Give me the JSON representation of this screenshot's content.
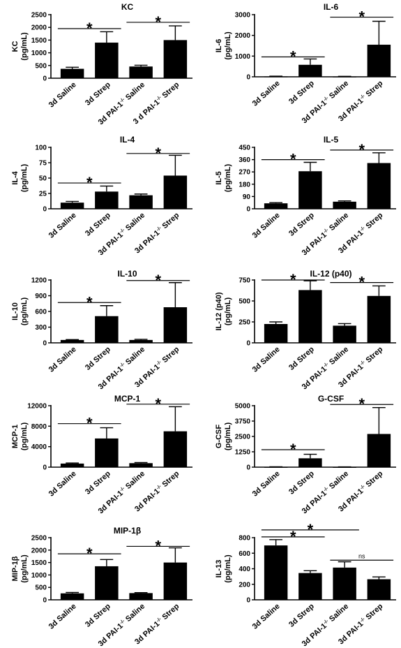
{
  "chart_data": [
    {
      "id": "kc",
      "type": "bar",
      "title": "KC",
      "ylabel_top": "KC",
      "ylabel_bottom": "(pg/mL)",
      "yticks": [
        "0",
        "500",
        "1000",
        "1500",
        "2000",
        "2500"
      ],
      "ylim": [
        0,
        2500
      ],
      "categories": [
        {
          "prefix": "3d Saline"
        },
        {
          "prefix": "3d Strep"
        },
        {
          "prefix": "3d PAI-1",
          "sup": "-/-",
          "suffix": " Saline"
        },
        {
          "prefix": "3 d PAI-1",
          "sup": "-/-",
          "suffix": " Strep"
        }
      ],
      "values": [
        370,
        1400,
        460,
        1500
      ],
      "errors": [
        60,
        430,
        50,
        560
      ],
      "sig": [
        {
          "from": 0,
          "to": 1,
          "label": "*",
          "y": 1950
        },
        {
          "from": 2,
          "to": 3,
          "label": "*",
          "y": 2200
        }
      ]
    },
    {
      "id": "il6",
      "type": "bar",
      "title": "IL-6",
      "ylabel_top": "IL-6",
      "ylabel_bottom": "(pg/mL)",
      "yticks": [
        "0",
        "1000",
        "2000",
        "3000"
      ],
      "ylim": [
        0,
        3000
      ],
      "categories": [
        {
          "prefix": "3d Saline"
        },
        {
          "prefix": "3d Strep"
        },
        {
          "prefix": "3d PAI-1",
          "sup": "-/-",
          "suffix": " Saline"
        },
        {
          "prefix": "3d PAI-1",
          "sup": "-/-",
          "suffix": " Strep"
        }
      ],
      "values": [
        20,
        580,
        15,
        1550
      ],
      "errors": [
        10,
        280,
        8,
        1130
      ],
      "sig": [
        {
          "from": 0,
          "to": 1,
          "label": "*",
          "y": 960
        },
        {
          "from": 2,
          "to": 3,
          "label": "*",
          "y": 2880
        }
      ]
    },
    {
      "id": "il4",
      "type": "bar",
      "title": "IL-4",
      "ylabel_top": "IL-4",
      "ylabel_bottom": "(pg/mL)",
      "yticks": [
        "0",
        "25",
        "50",
        "75",
        "100"
      ],
      "ylim": [
        0,
        100
      ],
      "categories": [
        {
          "prefix": "3d Saline"
        },
        {
          "prefix": "3d Strep"
        },
        {
          "prefix": "3d PAI-1",
          "sup": "-/-",
          "suffix": " Saline"
        },
        {
          "prefix": "3d PAI-1",
          "sup": "-/-",
          "suffix": " Strep"
        }
      ],
      "values": [
        10,
        28,
        22,
        54
      ],
      "errors": [
        2,
        9,
        2,
        33
      ],
      "sig": [
        {
          "from": 0,
          "to": 1,
          "label": "*",
          "y": 42
        },
        {
          "from": 2,
          "to": 3,
          "label": "*",
          "y": 90
        }
      ]
    },
    {
      "id": "il5",
      "type": "bar",
      "title": "IL-5",
      "ylabel_top": "IL-5",
      "ylabel_bottom": "(pg/mL)",
      "yticks": [
        "0",
        "90",
        "180",
        "270",
        "360",
        "450"
      ],
      "ylim": [
        0,
        450
      ],
      "categories": [
        {
          "prefix": "3d Saline"
        },
        {
          "prefix": "3d Strep"
        },
        {
          "prefix": "3d PAI-1",
          "sup": "-/-",
          "suffix": " Saline"
        },
        {
          "prefix": "3d PAI-1",
          "sup": "-/-",
          "suffix": " Strep"
        }
      ],
      "values": [
        40,
        275,
        52,
        335
      ],
      "errors": [
        5,
        65,
        6,
        75
      ],
      "sig": [
        {
          "from": 0,
          "to": 1,
          "label": "*",
          "y": 360
        },
        {
          "from": 2,
          "to": 3,
          "label": "*",
          "y": 430
        }
      ]
    },
    {
      "id": "il10",
      "type": "bar",
      "title": "IL-10",
      "ylabel_top": "IL-10",
      "ylabel_bottom": "(pg/mL)",
      "yticks": [
        "0",
        "300",
        "600",
        "900",
        "1200"
      ],
      "ylim": [
        0,
        1200
      ],
      "categories": [
        {
          "prefix": "3d Saline"
        },
        {
          "prefix": "3d Strep"
        },
        {
          "prefix": "3d PAI-1",
          "sup": "-/-",
          "suffix": " Saline"
        },
        {
          "prefix": "3d PAI-1",
          "sup": "-/-",
          "suffix": " Strep"
        }
      ],
      "values": [
        55,
        510,
        55,
        680
      ],
      "errors": [
        8,
        200,
        12,
        470
      ],
      "sig": [
        {
          "from": 0,
          "to": 1,
          "label": "*",
          "y": 770
        },
        {
          "from": 2,
          "to": 3,
          "label": "*",
          "y": 1190
        }
      ]
    },
    {
      "id": "il12",
      "type": "bar",
      "title": "IL-12 (p40)",
      "ylabel_top": "IL-12 (p40)",
      "ylabel_bottom": "(pg/mL)",
      "yticks": [
        "0",
        "250",
        "500",
        "750"
      ],
      "ylim": [
        0,
        750
      ],
      "categories": [
        {
          "prefix": "3d Saline"
        },
        {
          "prefix": "3d Strep"
        },
        {
          "prefix": "3d PAI-1",
          "sup": "-/-",
          "suffix": " Saline"
        },
        {
          "prefix": "3d PAI-1",
          "sup": "-/-",
          "suffix": " Strep"
        }
      ],
      "values": [
        225,
        630,
        205,
        560
      ],
      "errors": [
        25,
        110,
        25,
        120
      ],
      "sig": [
        {
          "from": 0,
          "to": 1,
          "label": "*",
          "y": 750
        },
        {
          "from": 2,
          "to": 3,
          "label": "*",
          "y": 720
        }
      ]
    },
    {
      "id": "mcp1",
      "type": "bar",
      "title": "MCP-1",
      "ylabel_top": "MCP-1",
      "ylabel_bottom": "(pg/mL)",
      "yticks": [
        "0",
        "4000",
        "8000",
        "12000"
      ],
      "ylim": [
        0,
        12000
      ],
      "categories": [
        {
          "prefix": "3d Saline"
        },
        {
          "prefix": "3d Strep"
        },
        {
          "prefix": "3d PAI-1",
          "sup": "-/-",
          "suffix": " Saline"
        },
        {
          "prefix": "3d PAI-1",
          "sup": "-/-",
          "suffix": " Strep"
        }
      ],
      "values": [
        700,
        5600,
        780,
        7000
      ],
      "errors": [
        100,
        2100,
        120,
        4800
      ],
      "sig": [
        {
          "from": 0,
          "to": 1,
          "label": "*",
          "y": 8500
        },
        {
          "from": 2,
          "to": 3,
          "label": "*",
          "y": 12300
        }
      ]
    },
    {
      "id": "gcsf",
      "type": "bar",
      "title": "G-CSF",
      "ylabel_top": "G-CSF",
      "ylabel_bottom": "(pg/mL)",
      "yticks": [
        "0",
        "1250",
        "2500",
        "3750",
        "5000"
      ],
      "ylim": [
        0,
        5000
      ],
      "categories": [
        {
          "prefix": "3d Saline"
        },
        {
          "prefix": "3d Strep"
        },
        {
          "prefix": "3d PAI-1",
          "sup": "-/-",
          "suffix": " Saline"
        },
        {
          "prefix": "3d PAI-1",
          "sup": "-/-",
          "suffix": " Strep"
        }
      ],
      "values": [
        20,
        720,
        15,
        2700
      ],
      "errors": [
        10,
        330,
        8,
        2150
      ],
      "sig": [
        {
          "from": 0,
          "to": 1,
          "label": "*",
          "y": 1420
        },
        {
          "from": 2,
          "to": 3,
          "label": "*",
          "y": 5100
        }
      ]
    },
    {
      "id": "mip1b",
      "type": "bar",
      "title": "MIP-1β",
      "ylabel_top": "MIP-1β",
      "ylabel_bottom": "(pg/mL)",
      "yticks": [
        "0",
        "500",
        "1000",
        "1500",
        "2000",
        "2500"
      ],
      "ylim": [
        0,
        2500
      ],
      "categories": [
        {
          "prefix": "3d Saline"
        },
        {
          "prefix": "3d Strep"
        },
        {
          "prefix": "3d PAI-1",
          "sup": "-/-",
          "suffix": " Saline"
        },
        {
          "prefix": "3d PAI-1",
          "sup": "-/-",
          "suffix": " Strep"
        }
      ],
      "values": [
        260,
        1350,
        270,
        1500
      ],
      "errors": [
        35,
        270,
        20,
        590
      ],
      "sig": [
        {
          "from": 0,
          "to": 1,
          "label": "*",
          "y": 1850
        },
        {
          "from": 2,
          "to": 3,
          "label": "*",
          "y": 2150
        }
      ]
    },
    {
      "id": "il13",
      "type": "bar",
      "title": "",
      "ylabel_top": "IL-13",
      "ylabel_bottom": "(pg/mL)",
      "yticks": [
        "0",
        "200",
        "400",
        "600",
        "800"
      ],
      "ylim": [
        0,
        800
      ],
      "categories": [
        {
          "prefix": "3d Saline"
        },
        {
          "prefix": "3d Strep"
        },
        {
          "prefix": "3d PAI-1",
          "sup": "-/-",
          "suffix": " Saline"
        },
        {
          "prefix": "3d PAI-1",
          "sup": "-/-",
          "suffix": " Strep"
        }
      ],
      "values": [
        700,
        345,
        415,
        265
      ],
      "errors": [
        75,
        30,
        75,
        30
      ],
      "sig": [
        {
          "from": 0,
          "to": 2,
          "label": "*",
          "y": 900
        },
        {
          "from": 0,
          "to": 1,
          "label": "*",
          "y": 810
        },
        {
          "from": 2,
          "to": 3,
          "label": "ns",
          "y": 510
        }
      ]
    }
  ]
}
